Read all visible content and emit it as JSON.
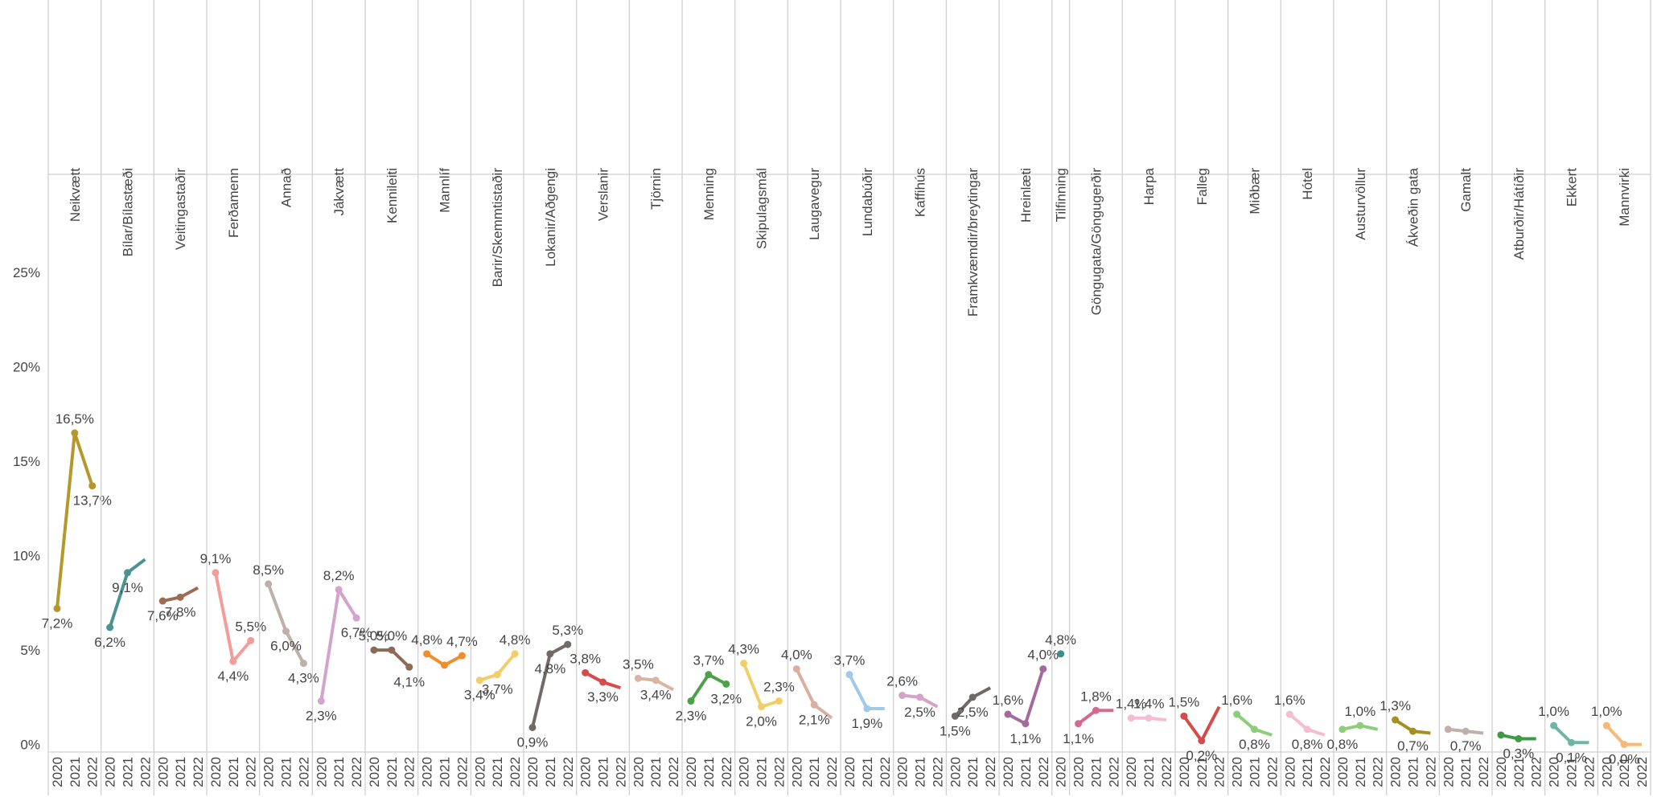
{
  "chart_data": {
    "type": "line",
    "ylim": [
      -0.4,
      30.2
    ],
    "yticks": [
      {
        "value": 0,
        "label": "0%"
      },
      {
        "value": 5,
        "label": "5%"
      },
      {
        "value": 10,
        "label": "10%"
      },
      {
        "value": 15,
        "label": "15%"
      },
      {
        "value": 20,
        "label": "20%"
      },
      {
        "value": 25,
        "label": "25%"
      }
    ],
    "series": [
      {
        "name": "Neikvætt",
        "color": "#b5972b",
        "categories": [
          "2020",
          "2021",
          "2022"
        ],
        "values": [
          7.2,
          16.5,
          13.7
        ],
        "value_labels": [
          "7,2%",
          "16,5%",
          "13,7%"
        ]
      },
      {
        "name": "Bílar/Bílastæði",
        "color": "#4a9490",
        "categories": [
          "2020",
          "2021",
          "2022"
        ],
        "values": [
          6.2,
          9.1,
          9.8
        ],
        "value_labels": [
          "6,2%",
          "9,1%",
          null
        ]
      },
      {
        "name": "Veitingastaðir",
        "color": "#9c6b52",
        "categories": [
          "2020",
          "2021",
          "2022"
        ],
        "values": [
          7.6,
          7.8,
          8.3
        ],
        "value_labels": [
          "7,6%",
          "7,8%",
          null
        ]
      },
      {
        "name": "Ferðamenn",
        "color": "#f49c98",
        "categories": [
          "2020",
          "2021",
          "2022"
        ],
        "values": [
          9.1,
          4.4,
          5.5
        ],
        "value_labels": [
          "9,1%",
          "4,4%",
          "5,5%"
        ]
      },
      {
        "name": "Annað",
        "color": "#bcb0a9",
        "categories": [
          "2020",
          "2021",
          "2022"
        ],
        "values": [
          8.5,
          6.0,
          4.3
        ],
        "value_labels": [
          "8,5%",
          "6,0%",
          "4,3%"
        ]
      },
      {
        "name": "Jákvætt",
        "color": "#d4a3cb",
        "categories": [
          "2020",
          "2021",
          "2022"
        ],
        "values": [
          2.3,
          8.2,
          6.7
        ],
        "value_labels": [
          "2,3%",
          "8,2%",
          "6,7%"
        ]
      },
      {
        "name": "Kennileiti",
        "color": "#8d6a57",
        "categories": [
          "2020",
          "2021",
          "2022"
        ],
        "values": [
          5.0,
          5.0,
          4.1
        ],
        "value_labels": [
          "5,0%",
          "5,0%",
          "4,1%"
        ]
      },
      {
        "name": "Mannlíf",
        "color": "#ef8e2d",
        "categories": [
          "2020",
          "2021",
          "2022"
        ],
        "values": [
          4.8,
          4.2,
          4.7
        ],
        "value_labels": [
          "4,8%",
          null,
          "4,7%"
        ]
      },
      {
        "name": "Barir/Skemmtistaðir",
        "color": "#f1cd6b",
        "categories": [
          "2020",
          "2021",
          "2022"
        ],
        "values": [
          3.4,
          3.7,
          4.8
        ],
        "value_labels": [
          "3,4%",
          "3,7%",
          "4,8%"
        ]
      },
      {
        "name": "Lokanir/Aðgengi",
        "color": "#736a66",
        "categories": [
          "2020",
          "2021",
          "2022"
        ],
        "values": [
          0.9,
          4.8,
          5.3
        ],
        "value_labels": [
          "0,9%",
          "4,8%",
          "5,3%"
        ]
      },
      {
        "name": "Verslanir",
        "color": "#d94b4b",
        "categories": [
          "2020",
          "2021",
          "2022"
        ],
        "values": [
          3.8,
          3.3,
          3.0
        ],
        "value_labels": [
          "3,8%",
          "3,3%",
          null
        ]
      },
      {
        "name": "Tjörnin",
        "color": "#d9b4a3",
        "categories": [
          "2020",
          "2021",
          "2022"
        ],
        "values": [
          3.5,
          3.4,
          2.9
        ],
        "value_labels": [
          "3,5%",
          "3,4%",
          null
        ]
      },
      {
        "name": "Menning",
        "color": "#4fa04a",
        "categories": [
          "2020",
          "2021",
          "2022"
        ],
        "values": [
          2.3,
          3.7,
          3.2
        ],
        "value_labels": [
          "2,3%",
          "3,7%",
          "3,2%"
        ]
      },
      {
        "name": "Skipulagsmál",
        "color": "#f0d066",
        "categories": [
          "2020",
          "2021",
          "2022"
        ],
        "values": [
          4.3,
          2.0,
          2.3
        ],
        "value_labels": [
          "4,3%",
          "2,0%",
          "2,3%"
        ]
      },
      {
        "name": "Laugavegur",
        "color": "#d9b0a0",
        "categories": [
          "2020",
          "2021",
          "2022"
        ],
        "values": [
          4.0,
          2.1,
          1.4
        ],
        "value_labels": [
          "4,0%",
          "2,1%",
          null
        ]
      },
      {
        "name": "Lundabúðir",
        "color": "#9fcbe8",
        "categories": [
          "2020",
          "2021",
          "2022"
        ],
        "values": [
          3.7,
          1.9,
          1.9
        ],
        "value_labels": [
          "3,7%",
          "1,9%",
          null
        ]
      },
      {
        "name": "Kaffihús",
        "color": "#d6a2c8",
        "categories": [
          "2020",
          "2021",
          "2022"
        ],
        "values": [
          2.6,
          2.5,
          2.0
        ],
        "value_labels": [
          "2,6%",
          "2,5%",
          null
        ]
      },
      {
        "name": "Framkvæmdir/breytingar",
        "color": "#706a66",
        "categories": [
          "2020",
          "2021",
          "2022"
        ],
        "values": [
          1.5,
          2.5,
          3.0
        ],
        "value_labels": [
          "1,5%",
          "2,5%",
          null
        ]
      },
      {
        "name": "Hreinlæti",
        "color": "#a56a9c",
        "categories": [
          "2020",
          "2021",
          "2022"
        ],
        "values": [
          1.6,
          1.1,
          4.0
        ],
        "value_labels": [
          "1,6%",
          "1,1%",
          "4,0%"
        ]
      },
      {
        "name": "Tilfinning",
        "color": "#3f8e86",
        "categories": [
          "2020"
        ],
        "values": [
          4.8
        ],
        "value_labels": [
          "4,8%"
        ]
      },
      {
        "name": "Göngugata/Göngugerðir",
        "color": "#d46a92",
        "categories": [
          "2020",
          "2021",
          "2022"
        ],
        "values": [
          1.1,
          1.8,
          1.8
        ],
        "value_labels": [
          "1,1%",
          "1,8%",
          null
        ]
      },
      {
        "name": "Harpa",
        "color": "#f5bcd3",
        "categories": [
          "2020",
          "2021",
          "2022"
        ],
        "values": [
          1.4,
          1.4,
          1.3
        ],
        "value_labels": [
          "1,4%",
          "1,4%",
          null
        ]
      },
      {
        "name": "Falleg",
        "color": "#d64a4a",
        "categories": [
          "2020",
          "2021",
          "2022"
        ],
        "values": [
          1.5,
          0.2,
          2.0
        ],
        "value_labels": [
          "1,5%",
          "0,2%",
          null
        ]
      },
      {
        "name": "Miðbær",
        "color": "#8dce7a",
        "categories": [
          "2020",
          "2021",
          "2022"
        ],
        "values": [
          1.6,
          0.8,
          0.5
        ],
        "value_labels": [
          "1,6%",
          "0,8%",
          null
        ]
      },
      {
        "name": "Hótel",
        "color": "#f7bcd2",
        "categories": [
          "2020",
          "2021",
          "2022"
        ],
        "values": [
          1.6,
          0.8,
          0.5
        ],
        "value_labels": [
          "1,6%",
          "0,8%",
          null
        ]
      },
      {
        "name": "Austurvöllur",
        "color": "#8dce7a",
        "categories": [
          "2020",
          "2021",
          "2022"
        ],
        "values": [
          0.8,
          1.0,
          0.8
        ],
        "value_labels": [
          "0,8%",
          "1,0%",
          null
        ]
      },
      {
        "name": "Ákveðin gata",
        "color": "#a48f22",
        "categories": [
          "2020",
          "2021",
          "2022"
        ],
        "values": [
          1.3,
          0.7,
          0.6
        ],
        "value_labels": [
          "1,3%",
          "0,7%",
          null
        ]
      },
      {
        "name": "Gamalt",
        "color": "#bcb0a9",
        "categories": [
          "2020",
          "2021",
          "2022"
        ],
        "values": [
          0.8,
          0.7,
          0.6
        ],
        "value_labels": [
          null,
          "0,7%",
          null
        ]
      },
      {
        "name": "Atburðir/Hátíðir",
        "color": "#3f9a48",
        "categories": [
          "2020",
          "2021",
          "2022"
        ],
        "values": [
          0.5,
          0.3,
          0.3
        ],
        "value_labels": [
          null,
          "0,3%",
          null
        ]
      },
      {
        "name": "Ekkert",
        "color": "#6fb5a8",
        "categories": [
          "2020",
          "2021",
          "2022"
        ],
        "values": [
          1.0,
          0.1,
          0.1
        ],
        "value_labels": [
          "1,0%",
          "0,1%",
          null
        ]
      },
      {
        "name": "Mannvirki",
        "color": "#f7b977",
        "categories": [
          "2020",
          "2021",
          "2022"
        ],
        "values": [
          1.0,
          0.0,
          0.0
        ],
        "value_labels": [
          "1,0%",
          "0,0%",
          null
        ]
      }
    ]
  }
}
